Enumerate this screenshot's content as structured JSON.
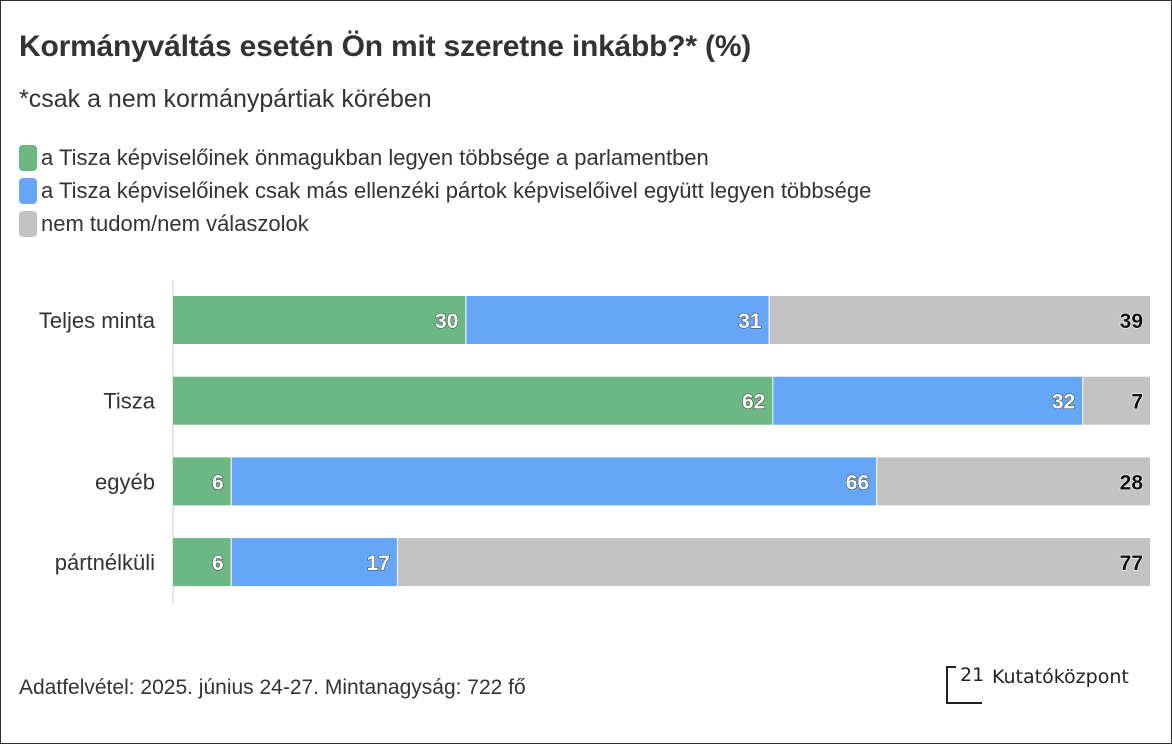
{
  "chart_data": {
    "type": "bar",
    "orientation": "horizontal",
    "stacked": true,
    "title": "Kormányváltás esetén Ön mit szeretne inkább?* (%)",
    "subtitle": "*csak a nem kormánypártiak körében",
    "categories": [
      "Teljes minta",
      "Tisza",
      "egyéb",
      "pártnélküli"
    ],
    "series": [
      {
        "name": "a Tisza képviselőinek önmagukban legyen többsége a parlamentben",
        "color": "#6db784",
        "values": [
          30,
          62,
          6,
          6
        ]
      },
      {
        "name": "a Tisza képviselőinek csak más ellenzéki pártok képviselőivel együtt legyen többsége",
        "color": "#66a6f7",
        "values": [
          31,
          32,
          66,
          17
        ]
      },
      {
        "name": "nem tudom/nem válaszolok",
        "color": "#c3c3c3",
        "values": [
          39,
          7,
          28,
          77
        ]
      }
    ],
    "legend_position": "top-left",
    "grid": false
  },
  "footer": {
    "source": "Adatfelvétel: 2025. június 24-27. Mintanagyság: 722 fő"
  },
  "logo": {
    "number": "21",
    "name": "Kutatóközpont"
  }
}
